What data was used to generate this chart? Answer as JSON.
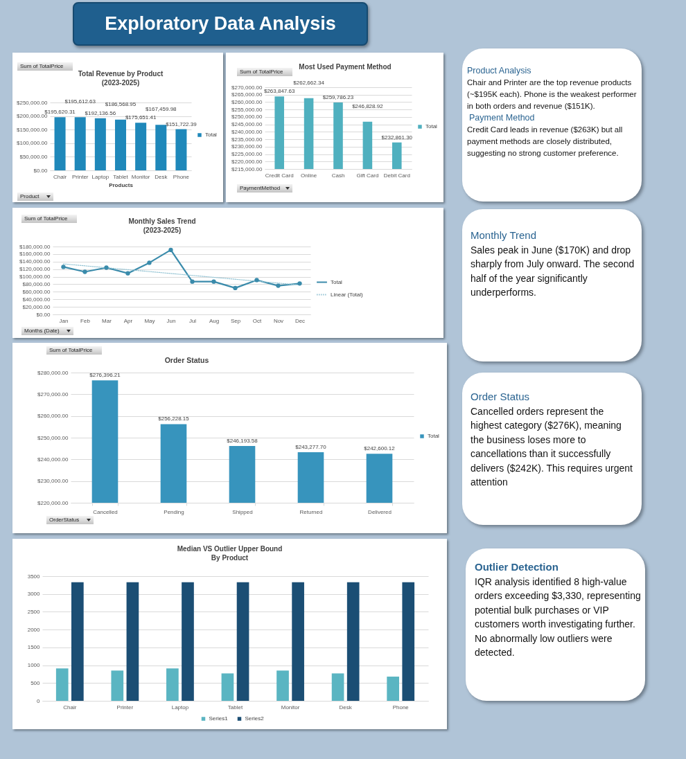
{
  "chart_data": [
    {
      "type": "other",
      "title": "Exploratory Data Analysis"
    },
    {
      "type": "bar",
      "title": "Total Revenue by Product (2023-2025)",
      "xlabel": "Products",
      "categories": [
        "Chair",
        "Printer",
        "Laptop",
        "Tablet",
        "Monitor",
        "Desk",
        "Phone"
      ],
      "series": [
        {
          "name": "Total",
          "color": "#1f88ba",
          "values": [
            195620.31,
            195612.63,
            192136.56,
            186568.95,
            175651.41,
            167459.98,
            151722.39
          ],
          "value_labels": [
            "$195,620.31",
            "$195,612.63",
            "$192,136.56",
            "$186,568.95",
            "$175,651.41",
            "$167,459.98",
            "$151,722.39"
          ]
        }
      ],
      "ylim": [
        0,
        250000
      ],
      "yticks": [
        {
          "value": 0,
          "label": "$0.00"
        },
        {
          "value": 50000,
          "label": "$50,000.00"
        },
        {
          "value": 100000,
          "label": "$100,000.00"
        },
        {
          "value": 150000,
          "label": "$150,000.00"
        },
        {
          "value": 200000,
          "label": "$200,000.00"
        },
        {
          "value": 250000,
          "label": "$250,000.00"
        }
      ],
      "grid": "y",
      "legend": "right",
      "annotations": [
        "Sum of TotalPrice",
        "Product"
      ]
    },
    {
      "type": "bar",
      "title": "Most Used Payment Method",
      "categories": [
        "Credit Card",
        "Online",
        "Cash",
        "Gift Card",
        "Debit Card"
      ],
      "series": [
        {
          "name": "Total",
          "color": "#4fb0bf",
          "values": [
            263847.63,
            262662.34,
            259786.23,
            246828.92,
            232861.3
          ],
          "value_labels": [
            "$263,847.63",
            "$262,662.34",
            "$259,786.23",
            "$246,828.92",
            "$232,861.30"
          ]
        }
      ],
      "ylim": [
        215000,
        270000
      ],
      "yticks": [
        {
          "value": 215000,
          "label": "$215,000.00"
        },
        {
          "value": 220000,
          "label": "$220,000.00"
        },
        {
          "value": 225000,
          "label": "$225,000.00"
        },
        {
          "value": 230000,
          "label": "$230,000.00"
        },
        {
          "value": 235000,
          "label": "$235,000.00"
        },
        {
          "value": 240000,
          "label": "$240,000.00"
        },
        {
          "value": 245000,
          "label": "$245,000.00"
        },
        {
          "value": 250000,
          "label": "$250,000.00"
        },
        {
          "value": 255000,
          "label": "$255,000.00"
        },
        {
          "value": 260000,
          "label": "$260,000.00"
        },
        {
          "value": 265000,
          "label": "$265,000.00"
        },
        {
          "value": 270000,
          "label": "$270,000.00"
        }
      ],
      "grid": "y",
      "legend": "right",
      "annotations": [
        "Sum of TotalPrice",
        "PaymentMethod"
      ]
    },
    {
      "type": "other",
      "title": "Product Analysis",
      "annotations": [
        "Chair and Printer are the top revenue products (~$195K each). Phone is the weakest performer in both orders and revenue ($151K).",
        "Payment Method",
        "Credit Card leads in revenue ($263K) but all payment methods are closely distributed, suggesting no strong customer preference."
      ]
    },
    {
      "type": "line",
      "title": "Monthly Sales Trend (2023-2025)",
      "categories": [
        "Jan",
        "Feb",
        "Mar",
        "Apr",
        "May",
        "Jun",
        "Jul",
        "Aug",
        "Sep",
        "Oct",
        "Nov",
        "Dec"
      ],
      "series": [
        {
          "name": "Total",
          "color": "#3a8bab",
          "values": [
            126000,
            113000,
            124000,
            109000,
            137000,
            171000,
            87000,
            87000,
            70000,
            91000,
            76000,
            82000
          ]
        },
        {
          "name": "Linear (Total)",
          "type": "line",
          "color": "#94c4d4",
          "x": [
            "Jan",
            "Dec"
          ],
          "values": [
            134000,
            78000
          ],
          "marker": "none",
          "line_style": "dotted"
        }
      ],
      "ylim": [
        0,
        180000
      ],
      "yticks": [
        {
          "value": 0,
          "label": "$0.00"
        },
        {
          "value": 20000,
          "label": "$20,000.00"
        },
        {
          "value": 40000,
          "label": "$40,000.00"
        },
        {
          "value": 60000,
          "label": "$60,000.00"
        },
        {
          "value": 80000,
          "label": "$80,000.00"
        },
        {
          "value": 100000,
          "label": "$100,000.00"
        },
        {
          "value": 120000,
          "label": "$120,000.00"
        },
        {
          "value": 140000,
          "label": "$140,000.00"
        },
        {
          "value": 160000,
          "label": "$160,000.00"
        },
        {
          "value": 180000,
          "label": "$180,000.00"
        }
      ],
      "grid": "y",
      "legend": "right",
      "marker": "circle",
      "annotations": [
        "Sum of TotalPrice",
        "Months (Date)"
      ]
    },
    {
      "type": "other",
      "title": "Monthly Trend",
      "annotations": [
        "Sales peak in June ($170K) and drop sharply from July onward. The second half of the year significantly underperforms."
      ]
    },
    {
      "type": "bar",
      "title": "Order Status",
      "categories": [
        "Cancelled",
        "Pending",
        "Shipped",
        "Returned",
        "Delivered"
      ],
      "series": [
        {
          "name": "Total",
          "color": "#3794bd",
          "values": [
            276396.21,
            256228.15,
            246193.58,
            243277.7,
            242600.12
          ],
          "value_labels": [
            "$276,396.21",
            "$256,228.15",
            "$246,193.58",
            "$243,277.70",
            "$242,600.12"
          ]
        }
      ],
      "ylim": [
        220000,
        280000
      ],
      "yticks": [
        {
          "value": 220000,
          "label": "$220,000.00"
        },
        {
          "value": 230000,
          "label": "$230,000.00"
        },
        {
          "value": 240000,
          "label": "$240,000.00"
        },
        {
          "value": 250000,
          "label": "$250,000.00"
        },
        {
          "value": 260000,
          "label": "$260,000.00"
        },
        {
          "value": 270000,
          "label": "$270,000.00"
        },
        {
          "value": 280000,
          "label": "$280,000.00"
        }
      ],
      "grid": "y",
      "legend": "right",
      "annotations": [
        "Sum of TotalPrice",
        "OrderStatus"
      ]
    },
    {
      "type": "other",
      "title": "Order Status",
      "annotations": [
        "Cancelled orders represent the highest category ($276K), meaning the business loses more to cancellations than it successfully delivers ($242K). This requires urgent attention"
      ]
    },
    {
      "type": "bar",
      "title": "Median VS Outlier Upper Bound By Product",
      "categories": [
        "Chair",
        "Printer",
        "Laptop",
        "Tablet",
        "Monitor",
        "Desk",
        "Phone"
      ],
      "series": [
        {
          "name": "Series1",
          "color": "#5ab5c2",
          "values": [
            910,
            850,
            910,
            770,
            850,
            770,
            680
          ]
        },
        {
          "name": "Series2",
          "color": "#1b4e74",
          "values": [
            3330,
            3330,
            3330,
            3330,
            3330,
            3330,
            3330
          ]
        }
      ],
      "ylim": [
        0,
        3500
      ],
      "yticks": [
        0,
        500,
        1000,
        1500,
        2000,
        2500,
        3000,
        3500
      ],
      "grid": "y",
      "legend": "bottom"
    },
    {
      "type": "other",
      "title": "Outlier Detection",
      "annotations": [
        "IQR analysis identified 8 high-value orders exceeding $3,330, representing potential bulk purchases or VIP customers worth investigating further. No abnormally low outliers were detected."
      ]
    }
  ]
}
